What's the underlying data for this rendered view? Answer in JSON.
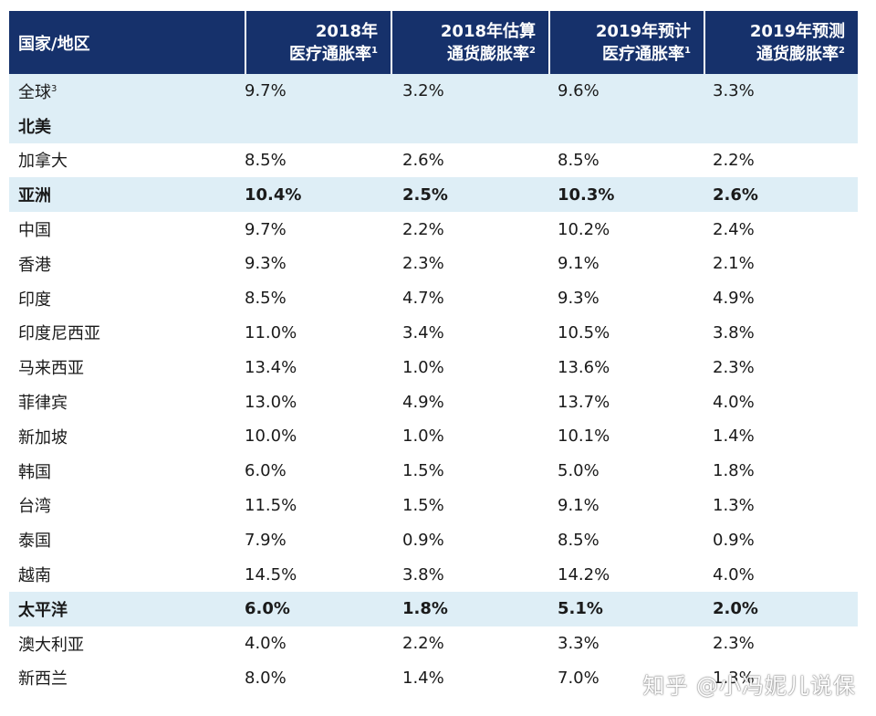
{
  "header": {
    "col0": "国家/地区",
    "col1_line1": "2018年",
    "col1_line2": "医疗通胀率",
    "col1_sup": "1",
    "col2_line1": "2018年估算",
    "col2_line2": "通货膨胀率",
    "col2_sup": "2",
    "col3_line1": "2019年预计",
    "col3_line2": "医疗通胀率",
    "col3_sup": "1",
    "col4_line1": "2019年预测",
    "col4_line2": "通货膨胀率",
    "col4_sup": "2"
  },
  "rows": [
    {
      "name": "全球",
      "sup": "3",
      "v": [
        "9.7%",
        "3.2%",
        "9.6%",
        "3.3%"
      ],
      "shaded": true,
      "bold": false
    },
    {
      "name": "北美",
      "sup": "",
      "v": [
        "",
        "",
        "",
        ""
      ],
      "shaded": true,
      "bold": true
    },
    {
      "name": "加拿大",
      "sup": "",
      "v": [
        "8.5%",
        "2.6%",
        "8.5%",
        "2.2%"
      ],
      "shaded": false,
      "bold": false
    },
    {
      "name": "亚洲",
      "sup": "",
      "v": [
        "10.4%",
        "2.5%",
        "10.3%",
        "2.6%"
      ],
      "shaded": true,
      "bold": true
    },
    {
      "name": "中国",
      "sup": "",
      "v": [
        "9.7%",
        "2.2%",
        "10.2%",
        "2.4%"
      ],
      "shaded": false,
      "bold": false
    },
    {
      "name": "香港",
      "sup": "",
      "v": [
        "9.3%",
        "2.3%",
        "9.1%",
        "2.1%"
      ],
      "shaded": false,
      "bold": false
    },
    {
      "name": "印度",
      "sup": "",
      "v": [
        "8.5%",
        "4.7%",
        "9.3%",
        "4.9%"
      ],
      "shaded": false,
      "bold": false
    },
    {
      "name": "印度尼西亚",
      "sup": "",
      "v": [
        "11.0%",
        "3.4%",
        "10.5%",
        "3.8%"
      ],
      "shaded": false,
      "bold": false
    },
    {
      "name": "马来西亚",
      "sup": "",
      "v": [
        "13.4%",
        "1.0%",
        "13.6%",
        "2.3%"
      ],
      "shaded": false,
      "bold": false
    },
    {
      "name": "菲律宾",
      "sup": "",
      "v": [
        "13.0%",
        "4.9%",
        "13.7%",
        "4.0%"
      ],
      "shaded": false,
      "bold": false
    },
    {
      "name": "新加坡",
      "sup": "",
      "v": [
        "10.0%",
        "1.0%",
        "10.1%",
        "1.4%"
      ],
      "shaded": false,
      "bold": false
    },
    {
      "name": "韩国",
      "sup": "",
      "v": [
        "6.0%",
        "1.5%",
        "5.0%",
        "1.8%"
      ],
      "shaded": false,
      "bold": false
    },
    {
      "name": "台湾",
      "sup": "",
      "v": [
        "11.5%",
        "1.5%",
        "9.1%",
        "1.3%"
      ],
      "shaded": false,
      "bold": false
    },
    {
      "name": "泰国",
      "sup": "",
      "v": [
        "7.9%",
        "0.9%",
        "8.5%",
        "0.9%"
      ],
      "shaded": false,
      "bold": false
    },
    {
      "name": "越南",
      "sup": "",
      "v": [
        "14.5%",
        "3.8%",
        "14.2%",
        "4.0%"
      ],
      "shaded": false,
      "bold": false
    },
    {
      "name": "太平洋",
      "sup": "",
      "v": [
        "6.0%",
        "1.8%",
        "5.1%",
        "2.0%"
      ],
      "shaded": true,
      "bold": true
    },
    {
      "name": "澳大利亚",
      "sup": "",
      "v": [
        "4.0%",
        "2.2%",
        "3.3%",
        "2.3%"
      ],
      "shaded": false,
      "bold": false
    },
    {
      "name": "新西兰",
      "sup": "",
      "v": [
        "8.0%",
        "1.4%",
        "7.0%",
        "1.3%"
      ],
      "shaded": false,
      "bold": false
    }
  ],
  "colors": {
    "header_bg": "#16316b",
    "shaded_bg": "#deeef6"
  },
  "watermark": "知乎 @小冯妮儿说保"
}
